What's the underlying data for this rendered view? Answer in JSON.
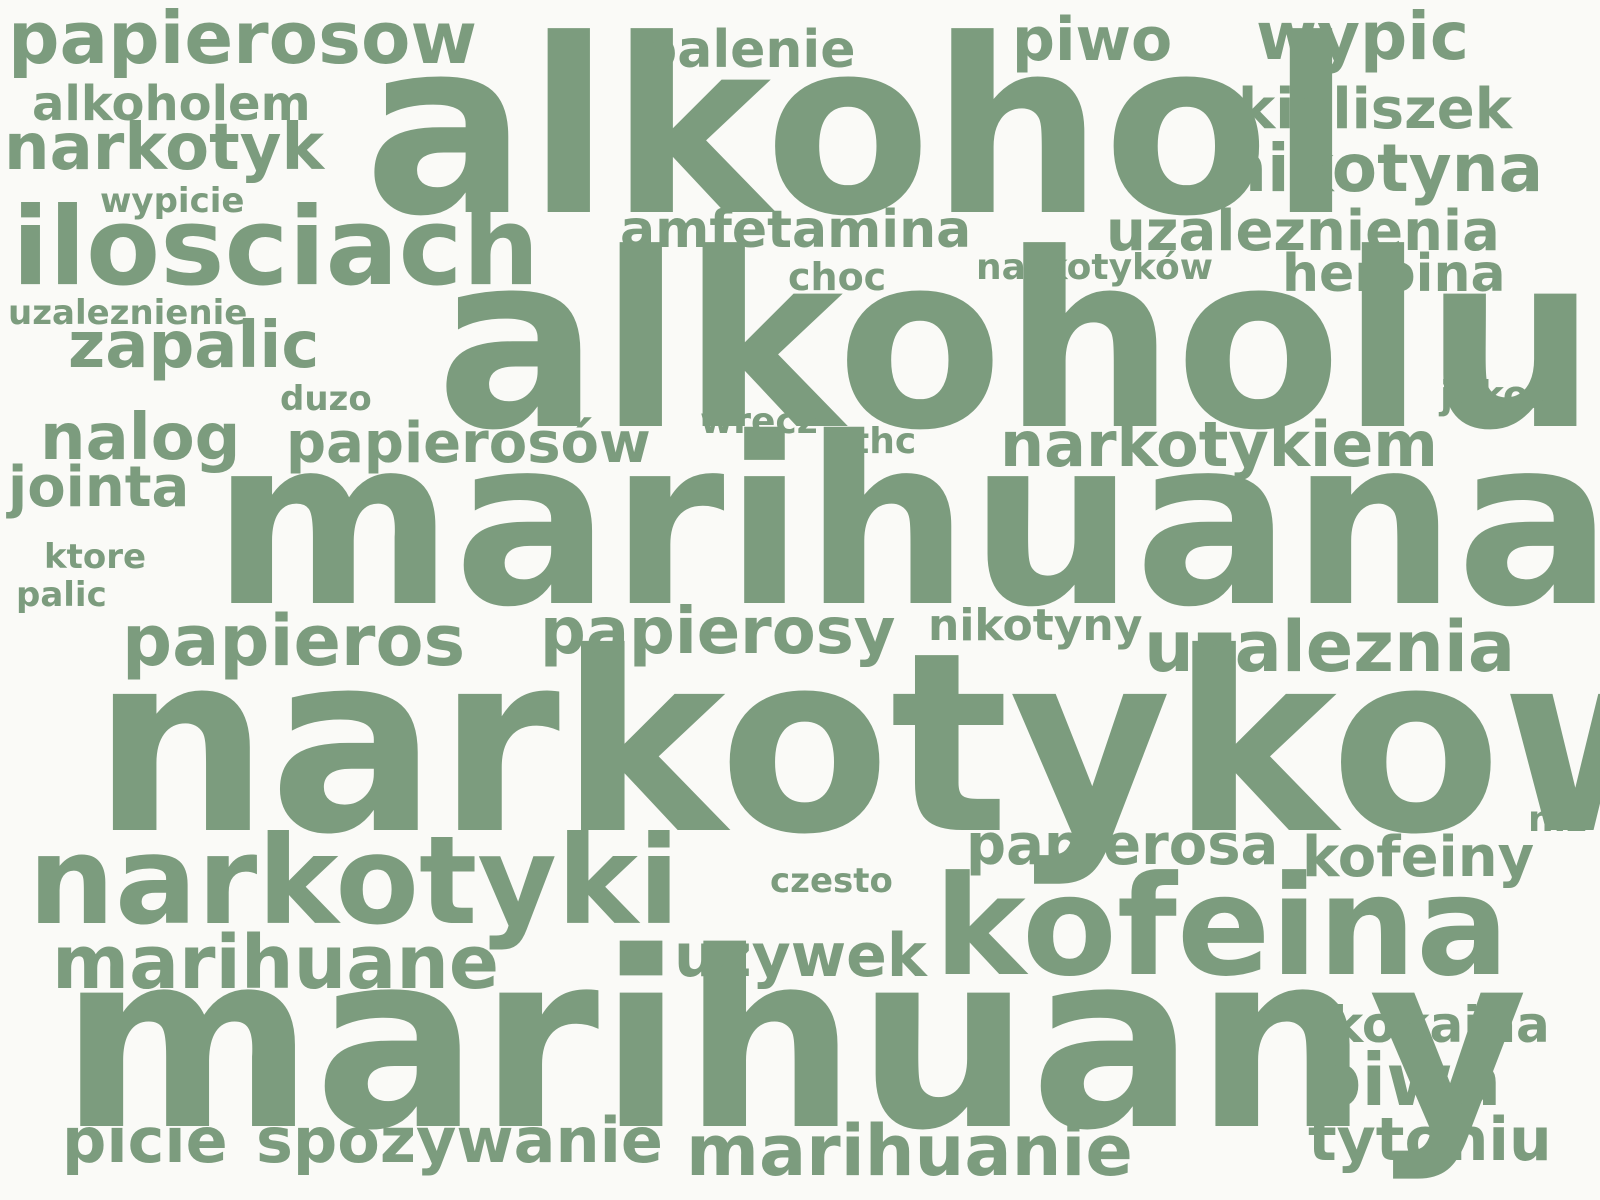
{
  "text_color": "#7c9c7e",
  "background": "#fafaf7",
  "words": {
    "alkohol": "alkohol",
    "alkoholu": "alkoholu",
    "marihuana": "marihuana",
    "narkotykow": "narkotykow",
    "marihuany": "marihuany",
    "narkotyki": "narkotyki",
    "kofeina": "kofeina",
    "ilosciach": "ilosciach",
    "papierosow": "papierosow",
    "narkotyk": "narkotyk",
    "alkoholem": "alkoholem",
    "wypicie": "wypicie",
    "uzaleznienie": "uzaleznienie",
    "zapalic": "zapalic",
    "duzo": "duzo",
    "nalog": "nalog",
    "jointa": "jointa",
    "ktore": "ktore",
    "palic": "palic",
    "palenie": "palenie",
    "piwo": "piwo",
    "wypic": "wypic",
    "kieliszek": "kieliszek",
    "nikotyna": "nikotyna",
    "amfetamina": "amfetamina",
    "uzaleznienia": "uzaleznienia",
    "choc": "choc",
    "narkotykow_pl": "narkotyków",
    "heroina": "heroina",
    "jakos": "jakos",
    "wrecz": "wrecz",
    "thc": "thc",
    "papierosow_pl": "papierosów",
    "narkotykiem": "narkotykiem",
    "papieros": "papieros",
    "papierosy": "papierosy",
    "nikotyny": "nikotyny",
    "uzaleznia": "uzaleznia",
    "niz": "niz",
    "papierosa": "papierosa",
    "kofeiny": "kofeiny",
    "czesto": "czesto",
    "marihuane": "marihuane",
    "uzywek": "uzywek",
    "kokaina": "kokaina",
    "piwa": "piwa",
    "picie": "picie",
    "spozywanie": "spozywanie",
    "marihuanie": "marihuanie",
    "tytoniu": "tytoniu"
  }
}
